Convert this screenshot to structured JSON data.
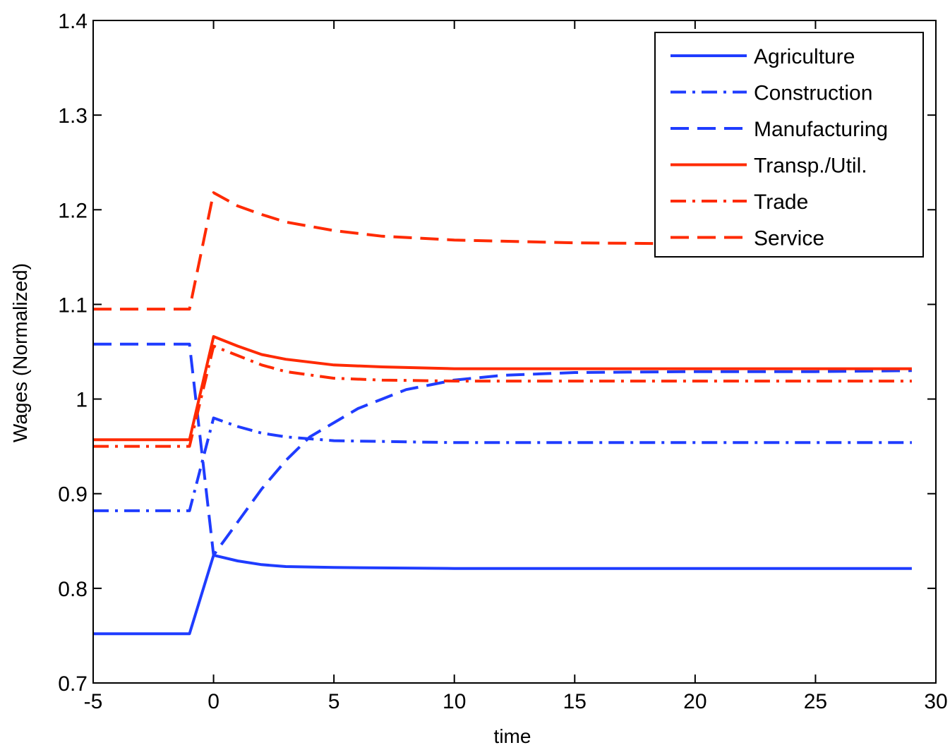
{
  "chart_data": {
    "type": "line",
    "title": "",
    "xlabel": "time",
    "ylabel": "Wages (Normalized)",
    "xlim": [
      -5,
      30
    ],
    "ylim": [
      0.7,
      1.4
    ],
    "xticks": [
      -5,
      0,
      5,
      10,
      15,
      20,
      25,
      30
    ],
    "yticks": [
      0.7,
      0.8,
      0.9,
      1.0,
      1.1,
      1.2,
      1.3,
      1.4
    ],
    "xtick_labels": [
      "-5",
      "0",
      "5",
      "10",
      "15",
      "20",
      "25",
      "30"
    ],
    "ytick_labels": [
      "0.7",
      "0.8",
      "0.9",
      "1",
      "1.1",
      "1.2",
      "1.3",
      "1.4"
    ],
    "grid": false,
    "legend_position": "top-right",
    "series": [
      {
        "name": "Agriculture",
        "color": "#1f3cff",
        "style": "solid",
        "points": [
          [
            -5,
            0.752
          ],
          [
            -1,
            0.752
          ],
          [
            0,
            0.835
          ],
          [
            1,
            0.829
          ],
          [
            2,
            0.825
          ],
          [
            3,
            0.823
          ],
          [
            5,
            0.822
          ],
          [
            10,
            0.821
          ],
          [
            29,
            0.821
          ]
        ]
      },
      {
        "name": "Construction",
        "color": "#1f3cff",
        "style": "dashdot",
        "points": [
          [
            -5,
            0.882
          ],
          [
            -1,
            0.882
          ],
          [
            0,
            0.98
          ],
          [
            1,
            0.971
          ],
          [
            2,
            0.964
          ],
          [
            3,
            0.96
          ],
          [
            5,
            0.956
          ],
          [
            10,
            0.954
          ],
          [
            29,
            0.954
          ]
        ]
      },
      {
        "name": "Manufacturing",
        "color": "#1f3cff",
        "style": "dashed",
        "points": [
          [
            -5,
            1.058
          ],
          [
            -1,
            1.058
          ],
          [
            0,
            0.835
          ],
          [
            1,
            0.87
          ],
          [
            2,
            0.905
          ],
          [
            3,
            0.935
          ],
          [
            4,
            0.96
          ],
          [
            5,
            0.975
          ],
          [
            6,
            0.99
          ],
          [
            7,
            1.0
          ],
          [
            8,
            1.01
          ],
          [
            9,
            1.015
          ],
          [
            10,
            1.02
          ],
          [
            12,
            1.025
          ],
          [
            15,
            1.028
          ],
          [
            20,
            1.029
          ],
          [
            25,
            1.029
          ],
          [
            29,
            1.03
          ]
        ]
      },
      {
        "name": "Transp./Util.",
        "color": "#ff2a00",
        "style": "solid",
        "points": [
          [
            -5,
            0.957
          ],
          [
            -1,
            0.957
          ],
          [
            0,
            1.066
          ],
          [
            1,
            1.056
          ],
          [
            2,
            1.047
          ],
          [
            3,
            1.042
          ],
          [
            5,
            1.036
          ],
          [
            7,
            1.034
          ],
          [
            10,
            1.032
          ],
          [
            29,
            1.032
          ]
        ]
      },
      {
        "name": "Trade",
        "color": "#ff2a00",
        "style": "dashdot",
        "points": [
          [
            -5,
            0.95
          ],
          [
            -1,
            0.95
          ],
          [
            0,
            1.056
          ],
          [
            1,
            1.046
          ],
          [
            2,
            1.036
          ],
          [
            3,
            1.029
          ],
          [
            5,
            1.022
          ],
          [
            7,
            1.02
          ],
          [
            10,
            1.019
          ],
          [
            29,
            1.019
          ]
        ]
      },
      {
        "name": "Service",
        "color": "#ff2a00",
        "style": "dashed",
        "points": [
          [
            -5,
            1.095
          ],
          [
            -1,
            1.095
          ],
          [
            0,
            1.218
          ],
          [
            1,
            1.204
          ],
          [
            2,
            1.195
          ],
          [
            3,
            1.187
          ],
          [
            5,
            1.178
          ],
          [
            7,
            1.172
          ],
          [
            10,
            1.168
          ],
          [
            15,
            1.165
          ],
          [
            20,
            1.164
          ],
          [
            29,
            1.164
          ]
        ]
      }
    ]
  }
}
